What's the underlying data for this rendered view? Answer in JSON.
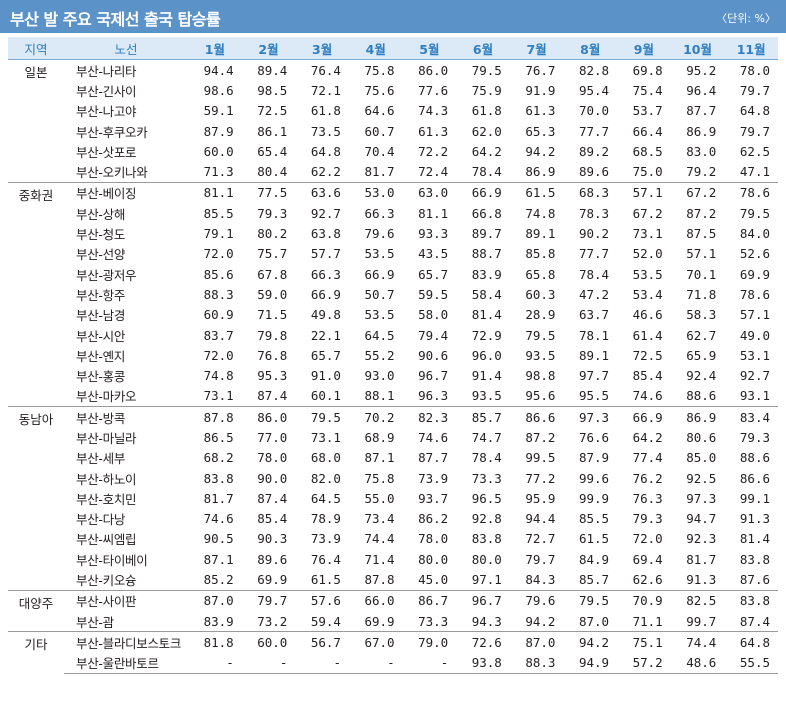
{
  "title": "부산 발 주요 국제선 출국 탑승률",
  "unit": "〈단위: %〉",
  "headers": {
    "region": "지역",
    "route": "노선",
    "months": [
      "1월",
      "2월",
      "3월",
      "4월",
      "5월",
      "6월",
      "7월",
      "8월",
      "9월",
      "10월",
      "11월"
    ]
  },
  "groups": [
    {
      "region": "일본",
      "rows": [
        {
          "route": "부산-나리타",
          "values": [
            "94.4",
            "89.4",
            "76.4",
            "75.8",
            "86.0",
            "79.5",
            "76.7",
            "82.8",
            "69.8",
            "95.2",
            "78.0"
          ]
        },
        {
          "route": "부산-긴사이",
          "values": [
            "98.6",
            "98.5",
            "72.1",
            "75.6",
            "77.6",
            "75.9",
            "91.9",
            "95.4",
            "75.4",
            "96.4",
            "79.7"
          ]
        },
        {
          "route": "부산-나고야",
          "values": [
            "59.1",
            "72.5",
            "61.8",
            "64.6",
            "74.3",
            "61.8",
            "61.3",
            "70.0",
            "53.7",
            "87.7",
            "64.8"
          ]
        },
        {
          "route": "부산-후쿠오카",
          "values": [
            "87.9",
            "86.1",
            "73.5",
            "60.7",
            "61.3",
            "62.0",
            "65.3",
            "77.7",
            "66.4",
            "86.9",
            "79.7"
          ]
        },
        {
          "route": "부산-삿포로",
          "values": [
            "60.0",
            "65.4",
            "64.8",
            "70.4",
            "72.2",
            "64.2",
            "94.2",
            "89.2",
            "68.5",
            "83.0",
            "62.5"
          ]
        },
        {
          "route": "부산-오키나와",
          "values": [
            "71.3",
            "80.4",
            "62.2",
            "81.7",
            "72.4",
            "78.4",
            "86.9",
            "89.6",
            "75.0",
            "79.2",
            "47.1"
          ]
        }
      ]
    },
    {
      "region": "중화권",
      "rows": [
        {
          "route": "부산-베이징",
          "values": [
            "81.1",
            "77.5",
            "63.6",
            "53.0",
            "63.0",
            "66.9",
            "61.5",
            "68.3",
            "57.1",
            "67.2",
            "78.6"
          ]
        },
        {
          "route": "부산-상해",
          "values": [
            "85.5",
            "79.3",
            "92.7",
            "66.3",
            "81.1",
            "66.8",
            "74.8",
            "78.3",
            "67.2",
            "87.2",
            "79.5"
          ]
        },
        {
          "route": "부산-청도",
          "values": [
            "79.1",
            "80.2",
            "63.8",
            "79.6",
            "93.3",
            "89.7",
            "89.1",
            "90.2",
            "73.1",
            "87.5",
            "84.0"
          ]
        },
        {
          "route": "부산-선양",
          "values": [
            "72.0",
            "75.7",
            "57.7",
            "53.5",
            "43.5",
            "88.7",
            "85.8",
            "77.7",
            "52.0",
            "57.1",
            "52.6"
          ]
        },
        {
          "route": "부산-광저우",
          "values": [
            "85.6",
            "67.8",
            "66.3",
            "66.9",
            "65.7",
            "83.9",
            "65.8",
            "78.4",
            "53.5",
            "70.1",
            "69.9"
          ]
        },
        {
          "route": "부산-항주",
          "values": [
            "88.3",
            "59.0",
            "66.9",
            "50.7",
            "59.5",
            "58.4",
            "60.3",
            "47.2",
            "53.4",
            "71.8",
            "78.6"
          ]
        },
        {
          "route": "부산-남경",
          "values": [
            "60.9",
            "71.5",
            "49.8",
            "53.5",
            "58.0",
            "81.4",
            "28.9",
            "63.7",
            "46.6",
            "58.3",
            "57.1"
          ]
        },
        {
          "route": "부산-시안",
          "values": [
            "83.7",
            "79.8",
            "22.1",
            "64.5",
            "79.4",
            "72.9",
            "79.5",
            "78.1",
            "61.4",
            "62.7",
            "49.0"
          ]
        },
        {
          "route": "부산-옌지",
          "values": [
            "72.0",
            "76.8",
            "65.7",
            "55.2",
            "90.6",
            "96.0",
            "93.5",
            "89.1",
            "72.5",
            "65.9",
            "53.1"
          ]
        },
        {
          "route": "부산-홍콩",
          "values": [
            "74.8",
            "95.3",
            "91.0",
            "93.0",
            "96.7",
            "91.4",
            "98.8",
            "97.7",
            "85.4",
            "92.4",
            "92.7"
          ]
        },
        {
          "route": "부산-마카오",
          "values": [
            "73.1",
            "87.4",
            "60.1",
            "88.1",
            "96.3",
            "93.5",
            "95.6",
            "95.5",
            "74.6",
            "88.6",
            "93.1"
          ]
        }
      ]
    },
    {
      "region": "동남아",
      "rows": [
        {
          "route": "부산-방콕",
          "values": [
            "87.8",
            "86.0",
            "79.5",
            "70.2",
            "82.3",
            "85.7",
            "86.6",
            "97.3",
            "66.9",
            "86.9",
            "83.4"
          ]
        },
        {
          "route": "부산-마닐라",
          "values": [
            "86.5",
            "77.0",
            "73.1",
            "68.9",
            "74.6",
            "74.7",
            "87.2",
            "76.6",
            "64.2",
            "80.6",
            "79.3"
          ]
        },
        {
          "route": "부산-세부",
          "values": [
            "68.2",
            "78.0",
            "68.0",
            "87.1",
            "87.7",
            "78.4",
            "99.5",
            "87.9",
            "77.4",
            "85.0",
            "88.6"
          ]
        },
        {
          "route": "부산-하노이",
          "values": [
            "83.8",
            "90.0",
            "82.0",
            "75.8",
            "73.9",
            "73.3",
            "77.2",
            "99.6",
            "76.2",
            "92.5",
            "86.6"
          ]
        },
        {
          "route": "부산-호치민",
          "values": [
            "81.7",
            "87.4",
            "64.5",
            "55.0",
            "93.7",
            "96.5",
            "95.9",
            "99.9",
            "76.3",
            "97.3",
            "99.1"
          ]
        },
        {
          "route": "부산-다낭",
          "values": [
            "74.6",
            "85.4",
            "78.9",
            "73.4",
            "86.2",
            "92.8",
            "94.4",
            "85.5",
            "79.3",
            "94.7",
            "91.3"
          ]
        },
        {
          "route": "부산-씨엠립",
          "values": [
            "90.5",
            "90.3",
            "73.9",
            "74.4",
            "78.0",
            "83.8",
            "72.7",
            "61.5",
            "72.0",
            "92.3",
            "81.4"
          ]
        },
        {
          "route": "부산-타이베이",
          "values": [
            "87.1",
            "89.6",
            "76.4",
            "71.4",
            "80.0",
            "80.0",
            "79.7",
            "84.9",
            "69.4",
            "81.7",
            "83.8"
          ]
        },
        {
          "route": "부산-키오슝",
          "values": [
            "85.2",
            "69.9",
            "61.5",
            "87.8",
            "45.0",
            "97.1",
            "84.3",
            "85.7",
            "62.6",
            "91.3",
            "87.6"
          ]
        }
      ]
    },
    {
      "region": "대양주",
      "rows": [
        {
          "route": "부산-사이판",
          "values": [
            "87.0",
            "79.7",
            "57.6",
            "66.0",
            "86.7",
            "96.7",
            "79.6",
            "79.5",
            "70.9",
            "82.5",
            "83.8"
          ]
        },
        {
          "route": "부산-괌",
          "values": [
            "83.9",
            "73.2",
            "59.4",
            "69.9",
            "73.3",
            "94.3",
            "94.2",
            "87.0",
            "71.1",
            "99.7",
            "87.4"
          ]
        }
      ]
    },
    {
      "region": "기타",
      "rows": [
        {
          "route": "부산-블라디보스토크",
          "values": [
            "81.8",
            "60.0",
            "56.7",
            "67.0",
            "79.0",
            "72.6",
            "87.0",
            "94.2",
            "75.1",
            "74.4",
            "64.8"
          ]
        },
        {
          "route": "부산-울란바토르",
          "values": [
            "-",
            "-",
            "-",
            "-",
            "-",
            "93.8",
            "88.3",
            "94.9",
            "57.2",
            "48.6",
            "55.5"
          ]
        }
      ]
    }
  ]
}
